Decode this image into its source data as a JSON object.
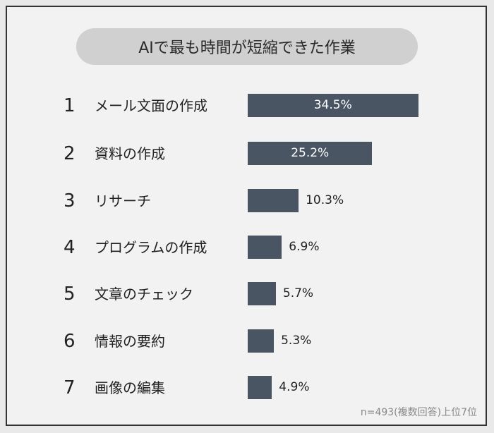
{
  "chart_data": {
    "type": "bar",
    "orientation": "horizontal",
    "title": "AIで最も時間が短縮できた作業",
    "ranks": [
      "1",
      "2",
      "3",
      "4",
      "5",
      "6",
      "7"
    ],
    "categories": [
      "メール文面の作成",
      "資料の作成",
      "リサーチ",
      "プログラムの作成",
      "文章のチェック",
      "情報の要約",
      "画像の編集"
    ],
    "values": [
      34.5,
      25.2,
      10.3,
      6.9,
      5.7,
      5.3,
      4.9
    ],
    "value_labels": [
      "34.5%",
      "25.2%",
      "10.3%",
      "6.9%",
      "5.7%",
      "5.3%",
      "4.9%"
    ],
    "bar_color": "#4a5563",
    "grid": false,
    "note": "n=493(複数回答)上位7位"
  }
}
